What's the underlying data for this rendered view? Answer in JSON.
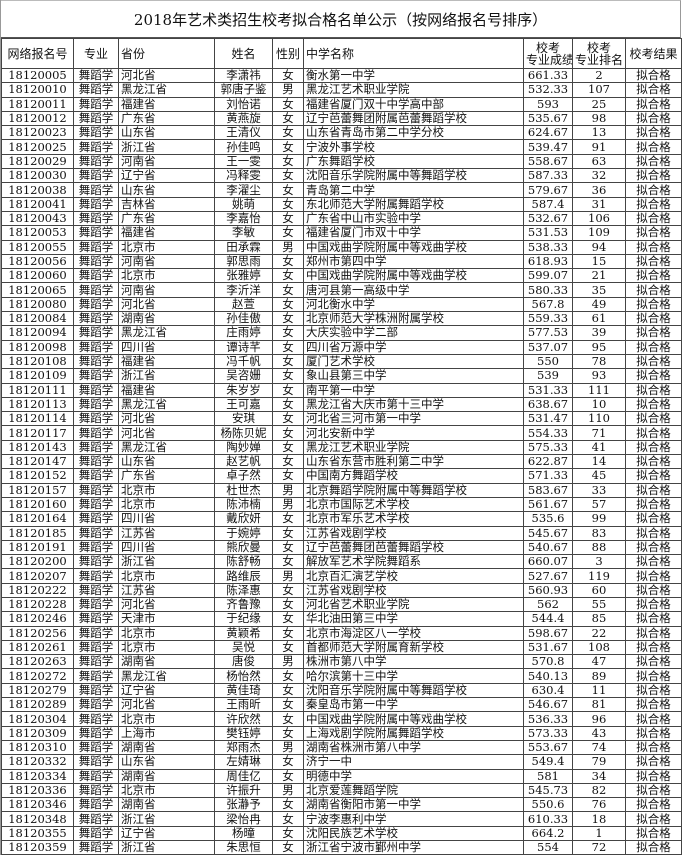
{
  "title": "2018年艺术类招生校考拟合格名单公示（按网络报名号排序）",
  "headers": {
    "id": "网络报名号",
    "major": "专业",
    "province": "省份",
    "name": "姓名",
    "gender": "性别",
    "school": "中学名称",
    "score_line1": "校考",
    "score_line2": "专业成绩",
    "rank_line1": "校考",
    "rank_line2": "专业排名",
    "result": "校考结果"
  },
  "rows": [
    [
      "18120005",
      "舞蹈学",
      "河北省",
      "李潇祎",
      "女",
      "衡水第一中学",
      "661.33",
      "2",
      "拟合格"
    ],
    [
      "18120010",
      "舞蹈学",
      "黑龙江省",
      "郭唐子鉴",
      "男",
      "黑龙江艺术职业学院",
      "532.33",
      "107",
      "拟合格"
    ],
    [
      "18120011",
      "舞蹈学",
      "福建省",
      "刘怡诺",
      "女",
      "福建省厦门双十中学高中部",
      "593",
      "25",
      "拟合格"
    ],
    [
      "18120012",
      "舞蹈学",
      "广东省",
      "黄燕旋",
      "女",
      "辽宁芭蕾舞团附属芭蕾舞蹈学校",
      "535.67",
      "98",
      "拟合格"
    ],
    [
      "18120023",
      "舞蹈学",
      "山东省",
      "王清仪",
      "女",
      "山东省青岛市第二中学分校",
      "624.67",
      "13",
      "拟合格"
    ],
    [
      "18120025",
      "舞蹈学",
      "浙江省",
      "孙佳鸣",
      "女",
      "宁波外事学校",
      "539.47",
      "91",
      "拟合格"
    ],
    [
      "18120029",
      "舞蹈学",
      "河南省",
      "王一雯",
      "女",
      "广东舞蹈学校",
      "558.67",
      "63",
      "拟合格"
    ],
    [
      "18120030",
      "舞蹈学",
      "辽宁省",
      "冯释雯",
      "女",
      "沈阳音乐学院附属中等舞蹈学校",
      "587.33",
      "32",
      "拟合格"
    ],
    [
      "18120038",
      "舞蹈学",
      "山东省",
      "李濯尘",
      "女",
      "青岛第二中学",
      "579.67",
      "36",
      "拟合格"
    ],
    [
      "18120041",
      "舞蹈学",
      "吉林省",
      "姚萌",
      "女",
      "东北师范大学附属舞蹈学校",
      "587.4",
      "31",
      "拟合格"
    ],
    [
      "18120043",
      "舞蹈学",
      "广东省",
      "李嘉怡",
      "女",
      "广东省中山市实验中学",
      "532.67",
      "106",
      "拟合格"
    ],
    [
      "18120053",
      "舞蹈学",
      "福建省",
      "李敏",
      "女",
      "福建省厦门市双十中学",
      "531.53",
      "109",
      "拟合格"
    ],
    [
      "18120055",
      "舞蹈学",
      "北京市",
      "田承霖",
      "男",
      "中国戏曲学院附属中等戏曲学校",
      "538.33",
      "94",
      "拟合格"
    ],
    [
      "18120056",
      "舞蹈学",
      "河南省",
      "郭思雨",
      "女",
      "郑州市第四中学",
      "618.93",
      "15",
      "拟合格"
    ],
    [
      "18120060",
      "舞蹈学",
      "北京市",
      "张雅婷",
      "女",
      "中国戏曲学院附属中等戏曲学校",
      "599.07",
      "21",
      "拟合格"
    ],
    [
      "18120065",
      "舞蹈学",
      "河南省",
      "李沂洋",
      "女",
      "唐河县第一高级中学",
      "580.33",
      "35",
      "拟合格"
    ],
    [
      "18120080",
      "舞蹈学",
      "河北省",
      "赵萱",
      "女",
      "河北衡水中学",
      "567.8",
      "49",
      "拟合格"
    ],
    [
      "18120084",
      "舞蹈学",
      "湖南省",
      "孙佳傲",
      "女",
      "北京师范大学株洲附属学校",
      "559.33",
      "61",
      "拟合格"
    ],
    [
      "18120094",
      "舞蹈学",
      "黑龙江省",
      "庄雨婷",
      "女",
      "大庆实验中学二部",
      "577.53",
      "39",
      "拟合格"
    ],
    [
      "18120098",
      "舞蹈学",
      "四川省",
      "谭诗芊",
      "女",
      "四川省万源中学",
      "537.07",
      "95",
      "拟合格"
    ],
    [
      "18120108",
      "舞蹈学",
      "福建省",
      "冯千帆",
      "女",
      "厦门艺术学校",
      "550",
      "78",
      "拟合格"
    ],
    [
      "18120109",
      "舞蹈学",
      "浙江省",
      "吴咨姗",
      "女",
      "象山县第三中学",
      "539",
      "93",
      "拟合格"
    ],
    [
      "18120111",
      "舞蹈学",
      "福建省",
      "朱岁岁",
      "女",
      "南平第一中学",
      "531.33",
      "111",
      "拟合格"
    ],
    [
      "18120113",
      "舞蹈学",
      "黑龙江省",
      "王可嘉",
      "女",
      "黑龙江省大庆市第十三中学",
      "638.67",
      "10",
      "拟合格"
    ],
    [
      "18120114",
      "舞蹈学",
      "河北省",
      "安琪",
      "女",
      "河北省三河市第一中学",
      "531.47",
      "110",
      "拟合格"
    ],
    [
      "18120117",
      "舞蹈学",
      "河北省",
      "杨陈贝妮",
      "女",
      "河北安新中学",
      "554.33",
      "71",
      "拟合格"
    ],
    [
      "18120143",
      "舞蹈学",
      "黑龙江省",
      "陶妙婵",
      "女",
      "黑龙江艺术职业学院",
      "575.33",
      "41",
      "拟合格"
    ],
    [
      "18120147",
      "舞蹈学",
      "山东省",
      "赵艺帆",
      "女",
      "山东省东营市胜利第二中学",
      "622.87",
      "14",
      "拟合格"
    ],
    [
      "18120152",
      "舞蹈学",
      "广东省",
      "卓子然",
      "女",
      "中国南方舞蹈学校",
      "571.33",
      "45",
      "拟合格"
    ],
    [
      "18120157",
      "舞蹈学",
      "北京市",
      "杜世杰",
      "男",
      "北京舞蹈学院附属中等舞蹈学校",
      "583.67",
      "33",
      "拟合格"
    ],
    [
      "18120160",
      "舞蹈学",
      "北京市",
      "陈沛楠",
      "男",
      "北京市国际艺术学校",
      "561.67",
      "57",
      "拟合格"
    ],
    [
      "18120164",
      "舞蹈学",
      "四川省",
      "戴欣妍",
      "女",
      "北京市军乐艺术学校",
      "535.6",
      "99",
      "拟合格"
    ],
    [
      "18120185",
      "舞蹈学",
      "江苏省",
      "于婉婷",
      "女",
      "江苏省戏剧学校",
      "545.67",
      "83",
      "拟合格"
    ],
    [
      "18120191",
      "舞蹈学",
      "四川省",
      "熊欣曼",
      "女",
      "辽宁芭蕾舞团芭蕾舞蹈学校",
      "540.67",
      "88",
      "拟合格"
    ],
    [
      "18120200",
      "舞蹈学",
      "浙江省",
      "陈舒畅",
      "女",
      "解放军艺术学院舞蹈系",
      "660.07",
      "3",
      "拟合格"
    ],
    [
      "18120207",
      "舞蹈学",
      "北京市",
      "路维辰",
      "男",
      "北京百汇演艺学校",
      "527.67",
      "119",
      "拟合格"
    ],
    [
      "18120222",
      "舞蹈学",
      "江苏省",
      "陈泽惠",
      "女",
      "江苏省戏剧学校",
      "560.93",
      "60",
      "拟合格"
    ],
    [
      "18120228",
      "舞蹈学",
      "河北省",
      "齐鲁豫",
      "女",
      "河北省艺术职业学院",
      "562",
      "55",
      "拟合格"
    ],
    [
      "18120246",
      "舞蹈学",
      "天津市",
      "于纪缘",
      "女",
      "华北油田第三中学",
      "544.4",
      "85",
      "拟合格"
    ],
    [
      "18120256",
      "舞蹈学",
      "北京市",
      "黄颖希",
      "女",
      "北京市海淀区八一学校",
      "598.67",
      "22",
      "拟合格"
    ],
    [
      "18120261",
      "舞蹈学",
      "北京市",
      "吴悦",
      "女",
      "首都师范大学附属育新学校",
      "531.67",
      "108",
      "拟合格"
    ],
    [
      "18120263",
      "舞蹈学",
      "湖南省",
      "唐俊",
      "男",
      "株洲市第八中学",
      "570.8",
      "47",
      "拟合格"
    ],
    [
      "18120272",
      "舞蹈学",
      "黑龙江省",
      "杨怡然",
      "女",
      "哈尔滨第十三中学",
      "540.13",
      "89",
      "拟合格"
    ],
    [
      "18120279",
      "舞蹈学",
      "辽宁省",
      "黄佳琦",
      "女",
      "沈阳音乐学院附属中等舞蹈学校",
      "630.4",
      "11",
      "拟合格"
    ],
    [
      "18120289",
      "舞蹈学",
      "河北省",
      "王雨昕",
      "女",
      "秦皇岛市第一中学",
      "546.67",
      "81",
      "拟合格"
    ],
    [
      "18120304",
      "舞蹈学",
      "北京市",
      "许欣然",
      "女",
      "中国戏曲学院附属中等戏曲学校",
      "536.33",
      "96",
      "拟合格"
    ],
    [
      "18120309",
      "舞蹈学",
      "上海市",
      "樊钰婷",
      "女",
      "上海戏剧学院附属舞蹈学校",
      "573.33",
      "43",
      "拟合格"
    ],
    [
      "18120310",
      "舞蹈学",
      "湖南省",
      "郑雨杰",
      "男",
      "湖南省株洲市第八中学",
      "553.67",
      "74",
      "拟合格"
    ],
    [
      "18120332",
      "舞蹈学",
      "山东省",
      "左婧琳",
      "女",
      "济宁一中",
      "549.4",
      "79",
      "拟合格"
    ],
    [
      "18120334",
      "舞蹈学",
      "湖南省",
      "周佳亿",
      "女",
      "明德中学",
      "581",
      "34",
      "拟合格"
    ],
    [
      "18120336",
      "舞蹈学",
      "北京市",
      "许振升",
      "男",
      "北京爱莲舞蹈学院",
      "545.73",
      "82",
      "拟合格"
    ],
    [
      "18120346",
      "舞蹈学",
      "湖南省",
      "张瀞予",
      "女",
      "湖南省衡阳市第一中学",
      "550.6",
      "76",
      "拟合格"
    ],
    [
      "18120348",
      "舞蹈学",
      "浙江省",
      "梁怡冉",
      "女",
      "宁波李惠利中学",
      "610.33",
      "18",
      "拟合格"
    ],
    [
      "18120355",
      "舞蹈学",
      "辽宁省",
      "杨曈",
      "女",
      "沈阳民族艺术学校",
      "664.2",
      "1",
      "拟合格"
    ],
    [
      "18120359",
      "舞蹈学",
      "浙江省",
      "朱思恒",
      "女",
      "浙江省宁波市鄞州中学",
      "554",
      "72",
      "拟合格"
    ]
  ]
}
